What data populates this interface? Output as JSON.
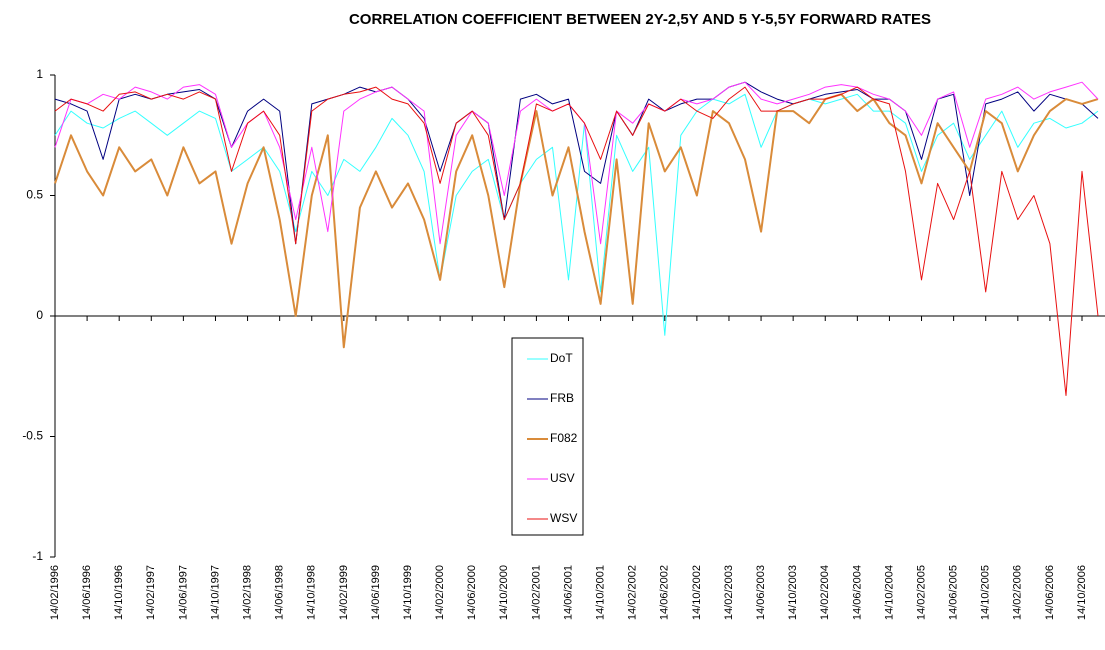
{
  "chart_data": {
    "type": "line",
    "title": "CORRELATION COEFFICIENT BETWEEN 2Y-2,5Y AND 5 Y-5,5Y FORWARD RATES",
    "categories": [
      "14/02/1996",
      null,
      "14/06/1996",
      null,
      "14/10/1996",
      null,
      "14/02/1997",
      null,
      "14/06/1997",
      null,
      "14/10/1997",
      null,
      "14/02/1998",
      null,
      "14/06/1998",
      null,
      "14/10/1998",
      null,
      "14/02/1999",
      null,
      "14/06/1999",
      null,
      "14/10/1999",
      null,
      "14/02/2000",
      null,
      "14/06/2000",
      null,
      "14/10/2000",
      null,
      "14/02/2001",
      null,
      "14/06/2001",
      null,
      "14/10/2001",
      null,
      "14/02/2002",
      null,
      "14/06/2002",
      null,
      "14/10/2002",
      null,
      "14/02/2003",
      null,
      "14/06/2003",
      null,
      "14/10/2003",
      null,
      "14/02/2004",
      null,
      "14/06/2004",
      null,
      "14/10/2004",
      null,
      "14/02/2005",
      null,
      "14/06/2005",
      null,
      "14/10/2005",
      null,
      "14/02/2006",
      null,
      "14/06/2006",
      null,
      "14/10/2006",
      null
    ],
    "series": [
      {
        "name": "DoT",
        "color": "#33ffff",
        "width": 1,
        "values": [
          0.75,
          0.85,
          0.8,
          0.78,
          0.82,
          0.85,
          0.8,
          0.75,
          0.8,
          0.85,
          0.82,
          0.6,
          0.65,
          0.7,
          0.6,
          0.35,
          0.6,
          0.5,
          0.65,
          0.6,
          0.7,
          0.82,
          0.75,
          0.6,
          0.15,
          0.5,
          0.6,
          0.65,
          0.4,
          0.55,
          0.65,
          0.7,
          0.15,
          0.8,
          0.1,
          0.75,
          0.6,
          0.7,
          -0.08,
          0.75,
          0.85,
          0.9,
          0.88,
          0.92,
          0.7,
          0.85,
          0.88,
          0.9,
          0.88,
          0.9,
          0.92,
          0.85,
          0.85,
          0.8,
          0.6,
          0.75,
          0.8,
          0.65,
          0.75,
          0.85,
          0.7,
          0.8,
          0.82,
          0.78,
          0.8,
          0.85
        ]
      },
      {
        "name": "FRB",
        "color": "#000080",
        "width": 1,
        "values": [
          0.9,
          0.88,
          0.85,
          0.65,
          0.9,
          0.92,
          0.9,
          0.92,
          0.93,
          0.94,
          0.9,
          0.7,
          0.85,
          0.9,
          0.85,
          0.3,
          0.88,
          0.9,
          0.92,
          0.95,
          0.93,
          0.95,
          0.9,
          0.82,
          0.6,
          0.8,
          0.85,
          0.8,
          0.4,
          0.9,
          0.92,
          0.88,
          0.9,
          0.6,
          0.55,
          0.85,
          0.75,
          0.9,
          0.85,
          0.88,
          0.9,
          0.9,
          0.95,
          0.97,
          0.93,
          0.9,
          0.88,
          0.9,
          0.92,
          0.93,
          0.94,
          0.9,
          0.9,
          0.85,
          0.65,
          0.9,
          0.92,
          0.5,
          0.88,
          0.9,
          0.93,
          0.85,
          0.92,
          0.9,
          0.88,
          0.82
        ]
      },
      {
        "name": "F082",
        "color": "#d98b3a",
        "width": 2,
        "values": [
          0.55,
          0.75,
          0.6,
          0.5,
          0.7,
          0.6,
          0.65,
          0.5,
          0.7,
          0.55,
          0.6,
          0.3,
          0.55,
          0.7,
          0.4,
          0.0,
          0.5,
          0.75,
          -0.13,
          0.45,
          0.6,
          0.45,
          0.55,
          0.4,
          0.15,
          0.6,
          0.75,
          0.5,
          0.12,
          0.55,
          0.85,
          0.5,
          0.7,
          0.35,
          0.05,
          0.65,
          0.05,
          0.8,
          0.6,
          0.7,
          0.5,
          0.85,
          0.8,
          0.65,
          0.35,
          0.85,
          0.85,
          0.8,
          0.9,
          0.92,
          0.85,
          0.9,
          0.8,
          0.75,
          0.55,
          0.8,
          0.7,
          0.6,
          0.85,
          0.8,
          0.6,
          0.75,
          0.85,
          0.9,
          0.88,
          0.9
        ]
      },
      {
        "name": "USV",
        "color": "#ff33ff",
        "width": 1,
        "values": [
          0.7,
          0.9,
          0.88,
          0.92,
          0.9,
          0.95,
          0.93,
          0.9,
          0.95,
          0.96,
          0.92,
          0.7,
          0.8,
          0.85,
          0.7,
          0.4,
          0.7,
          0.35,
          0.85,
          0.9,
          0.93,
          0.95,
          0.9,
          0.85,
          0.3,
          0.75,
          0.85,
          0.8,
          0.5,
          0.85,
          0.9,
          0.85,
          0.88,
          0.8,
          0.3,
          0.85,
          0.8,
          0.88,
          0.85,
          0.9,
          0.88,
          0.9,
          0.95,
          0.97,
          0.9,
          0.88,
          0.9,
          0.92,
          0.95,
          0.96,
          0.95,
          0.92,
          0.9,
          0.85,
          0.75,
          0.9,
          0.93,
          0.7,
          0.9,
          0.92,
          0.95,
          0.9,
          0.93,
          0.95,
          0.97,
          0.9
        ]
      },
      {
        "name": "WSV",
        "color": "#e81010",
        "width": 1,
        "values": [
          0.85,
          0.9,
          0.88,
          0.85,
          0.92,
          0.93,
          0.9,
          0.92,
          0.9,
          0.93,
          0.9,
          0.6,
          0.8,
          0.85,
          0.75,
          0.3,
          0.85,
          0.9,
          0.92,
          0.93,
          0.95,
          0.9,
          0.88,
          0.8,
          0.55,
          0.8,
          0.85,
          0.75,
          0.4,
          0.55,
          0.88,
          0.85,
          0.88,
          0.8,
          0.65,
          0.85,
          0.75,
          0.88,
          0.85,
          0.9,
          0.85,
          0.82,
          0.9,
          0.95,
          0.85,
          0.85,
          0.88,
          0.9,
          0.9,
          0.92,
          0.95,
          0.9,
          0.88,
          0.6,
          0.15,
          0.55,
          0.4,
          0.6,
          0.1,
          0.6,
          0.4,
          0.5,
          0.3,
          -0.33,
          0.6,
          0.0
        ]
      }
    ],
    "ylim": [
      -1,
      1
    ],
    "yticks": [
      -1,
      -0.5,
      0,
      0.5,
      1
    ],
    "grid": false,
    "legend": "center"
  }
}
